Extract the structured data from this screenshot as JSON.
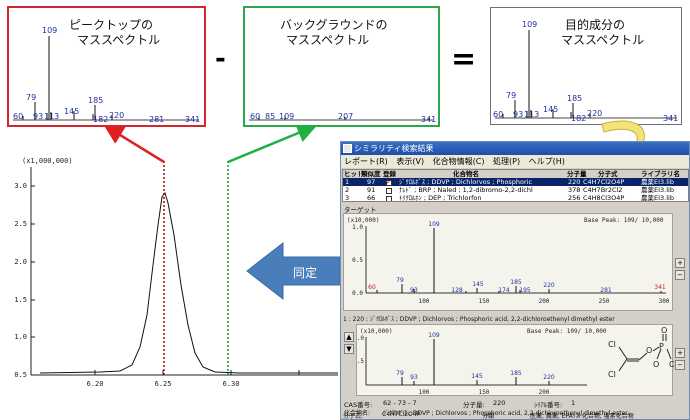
{
  "spectra": {
    "peak": {
      "title1": "ピークトップの",
      "title2": "マススペクトル",
      "labels": [
        "109",
        "79",
        "60",
        "93",
        "113",
        "145",
        "185",
        "182",
        "220",
        "281",
        "341"
      ],
      "border_color": "#d0282e"
    },
    "background": {
      "title1": "バックグラウンドの",
      "title2": "マススペクトル",
      "labels": [
        "60",
        "85",
        "109",
        "207",
        "341"
      ],
      "border_color": "#2aa84a"
    },
    "target": {
      "title1": "目的成分の",
      "title2": "マススペクトル",
      "labels": [
        "109",
        "79",
        "60",
        "93",
        "113",
        "145",
        "185",
        "182",
        "220",
        "341"
      ],
      "border_color": "#707070"
    },
    "minus_sign": "-",
    "equals_sign": "="
  },
  "chromatogram": {
    "y_multiplier": "(x1,000,000)",
    "y_ticks": [
      "3.0",
      "2.5",
      "2.0",
      "1.5",
      "1.0",
      "0.5"
    ],
    "x_ticks": [
      "6.20",
      "6.25",
      "6.30"
    ]
  },
  "identify_arrow": {
    "label": "同定",
    "color": "#4a7ebb"
  },
  "result_window": {
    "title": "シミラリティ検索結果",
    "menu": [
      "レポート(R)",
      "表示(V)",
      "化合物情報(C)",
      "処理(P)",
      "ヘルプ(H)"
    ],
    "table": {
      "headers": [
        "ヒット",
        "類似度",
        "登録",
        "化合物名",
        "分子量",
        "分子式",
        "ライブラリ名"
      ],
      "rows": [
        {
          "hit": "1",
          "sim": "97",
          "name": "ｼﾞｸﾛﾙﾎﾞｽ ; DDVP ; Dichlorvos ; Phosphoric",
          "mw": "220",
          "formula": "C4H7Cl2O4P",
          "lib": "農薬EI3.lib"
        },
        {
          "hit": "2",
          "sim": "91",
          "name": "ﾅﾚﾄﾞ ; BRP ; Naled ; 1,2-dibromo-2,2-dichl",
          "mw": "378",
          "formula": "C4H7Br2Cl2",
          "lib": "農薬EI3.lib"
        },
        {
          "hit": "3",
          "sim": "66",
          "name": "ﾄﾘｸﾛﾙﾎﾝ ; DEP ; Trichlorfon",
          "mw": "256",
          "formula": "C4H8Cl3O4P",
          "lib": "農薬EI3.lib"
        }
      ]
    },
    "target_label": "ターゲット",
    "target_mult": "(x10,000)",
    "base_peak": "Base Peak: 109/ 10,000",
    "target_peaks": [
      "109",
      "60",
      "79",
      "93",
      "128",
      "145",
      "174",
      "185",
      "195",
      "220",
      "281",
      "341"
    ],
    "lib_peaks": [
      "109",
      "79",
      "93",
      "145",
      "185",
      "220"
    ],
    "y_ticks": [
      "1.0",
      "0.5",
      "0.0"
    ],
    "x_ticks": [
      "100",
      "150",
      "200",
      "250",
      "300"
    ],
    "hit_line": "1 : 220 : ｼﾞｸﾛﾙﾎﾞｽ ; DDVP ; Dichlorvos ; Phosphoric acid, 2,2-dichloroethenyl dimethyl ester",
    "cas_label": "CAS番号:",
    "cas_value": "62 - 73 - 7",
    "mw_label": "分子量:",
    "mw_value": "220",
    "serial_label": "ｼﾘｱﾙ番号:",
    "serial_value": "1",
    "compound_label": "化合物名:",
    "compound_value": "ｼﾞｸﾛﾙﾎﾞｽ ; DDVP ; Dichlorvos ; Phosphoric acid, 2,2-dichloroethenyl dimethyl ester",
    "formula_label": "分子式:",
    "formula_value": "C4H7Cl2O4P",
    "class_label": "分類",
    "class_value": "医薬, 農薬, EPAﾘｽﾄ化合物, 塩素化合物",
    "structure_labels": [
      "Cl",
      "Cl",
      "O",
      "P",
      "O",
      "O",
      "O"
    ]
  }
}
